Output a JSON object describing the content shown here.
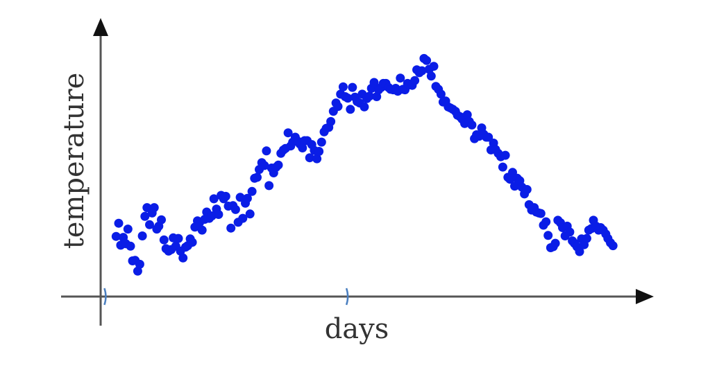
{
  "chart_data": {
    "type": "scatter",
    "xlabel": "days",
    "ylabel": "temperature",
    "xlim": [
      0,
      105
    ],
    "ylim": [
      0,
      55
    ],
    "grid": false,
    "marker_color": "#0a1de6",
    "axis_color": "#555555",
    "x_ticks": [
      1,
      48
    ],
    "series": [
      {
        "points": [
          [
            3.0,
            12.3
          ],
          [
            3.5,
            15.0
          ],
          [
            3.9,
            10.5
          ],
          [
            4.4,
            12.1
          ],
          [
            4.9,
            10.8
          ],
          [
            5.3,
            13.8
          ],
          [
            5.8,
            10.3
          ],
          [
            6.2,
            7.3
          ],
          [
            6.7,
            7.4
          ],
          [
            7.2,
            5.2
          ],
          [
            7.6,
            6.6
          ],
          [
            8.1,
            12.4
          ],
          [
            8.6,
            16.4
          ],
          [
            9.0,
            18.2
          ],
          [
            9.5,
            14.7
          ],
          [
            10.0,
            17.1
          ],
          [
            10.4,
            18.2
          ],
          [
            10.9,
            13.8
          ],
          [
            11.3,
            14.4
          ],
          [
            11.8,
            15.7
          ],
          [
            12.3,
            11.6
          ],
          [
            12.7,
            9.8
          ],
          [
            13.2,
            9.3
          ],
          [
            13.7,
            9.6
          ],
          [
            14.1,
            12.0
          ],
          [
            14.6,
            10.3
          ],
          [
            15.1,
            11.9
          ],
          [
            15.5,
            9.3
          ],
          [
            16.0,
            7.9
          ],
          [
            16.5,
            10.1
          ],
          [
            16.9,
            10.4
          ],
          [
            17.4,
            11.8
          ],
          [
            17.8,
            11.1
          ],
          [
            18.3,
            14.2
          ],
          [
            18.8,
            15.5
          ],
          [
            19.2,
            15.1
          ],
          [
            19.7,
            13.6
          ],
          [
            20.2,
            15.8
          ],
          [
            20.6,
            17.3
          ],
          [
            21.1,
            16.0
          ],
          [
            21.6,
            16.5
          ],
          [
            22.0,
            20.0
          ],
          [
            22.5,
            17.9
          ],
          [
            22.9,
            16.8
          ],
          [
            23.4,
            20.7
          ],
          [
            23.9,
            20.0
          ],
          [
            24.3,
            20.5
          ],
          [
            24.8,
            18.5
          ],
          [
            25.3,
            14.0
          ],
          [
            25.7,
            18.6
          ],
          [
            26.2,
            17.8
          ],
          [
            26.7,
            15.2
          ],
          [
            27.1,
            20.3
          ],
          [
            27.6,
            16.0
          ],
          [
            28.1,
            19.1
          ],
          [
            28.5,
            20.1
          ],
          [
            29.0,
            16.9
          ],
          [
            29.4,
            21.5
          ],
          [
            29.9,
            24.2
          ],
          [
            30.4,
            24.4
          ],
          [
            30.8,
            26.0
          ],
          [
            31.3,
            27.4
          ],
          [
            31.8,
            26.8
          ],
          [
            32.2,
            29.8
          ],
          [
            32.7,
            22.7
          ],
          [
            33.2,
            26.3
          ],
          [
            33.6,
            25.3
          ],
          [
            34.1,
            26.5
          ],
          [
            34.5,
            26.9
          ],
          [
            35.0,
            29.3
          ],
          [
            35.5,
            30.0
          ],
          [
            35.9,
            30.3
          ],
          [
            36.4,
            33.5
          ],
          [
            36.9,
            30.8
          ],
          [
            37.3,
            31.6
          ],
          [
            37.8,
            32.6
          ],
          [
            38.3,
            31.8
          ],
          [
            38.7,
            31.2
          ],
          [
            39.2,
            30.4
          ],
          [
            39.6,
            31.9
          ],
          [
            40.1,
            31.9
          ],
          [
            40.6,
            28.4
          ],
          [
            41.0,
            31.1
          ],
          [
            41.5,
            29.9
          ],
          [
            42.0,
            28.2
          ],
          [
            42.4,
            29.7
          ],
          [
            42.9,
            31.6
          ],
          [
            43.4,
            33.7
          ],
          [
            43.8,
            34.4
          ],
          [
            44.3,
            34.6
          ],
          [
            44.7,
            35.8
          ],
          [
            45.2,
            37.9
          ],
          [
            45.7,
            39.6
          ],
          [
            46.1,
            38.9
          ],
          [
            46.6,
            41.4
          ],
          [
            47.1,
            42.9
          ],
          [
            47.5,
            40.9
          ],
          [
            48.0,
            40.6
          ],
          [
            48.5,
            38.3
          ],
          [
            48.9,
            42.8
          ],
          [
            49.4,
            40.8
          ],
          [
            49.8,
            39.9
          ],
          [
            50.3,
            39.6
          ],
          [
            50.8,
            41.4
          ],
          [
            51.2,
            38.8
          ],
          [
            51.7,
            40.5
          ],
          [
            52.2,
            41.0
          ],
          [
            52.6,
            42.6
          ],
          [
            53.1,
            43.8
          ],
          [
            53.6,
            40.9
          ],
          [
            54.0,
            42.3
          ],
          [
            54.5,
            42.8
          ],
          [
            54.9,
            43.6
          ],
          [
            55.4,
            43.6
          ],
          [
            55.9,
            42.8
          ],
          [
            56.3,
            42.4
          ],
          [
            56.8,
            42.3
          ],
          [
            57.3,
            42.6
          ],
          [
            57.7,
            42.0
          ],
          [
            58.2,
            44.7
          ],
          [
            58.7,
            42.4
          ],
          [
            59.1,
            42.3
          ],
          [
            59.6,
            43.6
          ],
          [
            60.0,
            43.3
          ],
          [
            60.5,
            43.2
          ],
          [
            61.0,
            44.2
          ],
          [
            61.4,
            46.4
          ],
          [
            61.9,
            45.8
          ],
          [
            62.4,
            46.2
          ],
          [
            62.8,
            48.7
          ],
          [
            63.3,
            48.3
          ],
          [
            63.8,
            46.5
          ],
          [
            64.2,
            45.1
          ],
          [
            64.7,
            47.1
          ],
          [
            65.1,
            43.0
          ],
          [
            65.6,
            42.4
          ],
          [
            66.1,
            41.4
          ],
          [
            66.5,
            39.8
          ],
          [
            67.0,
            40.0
          ],
          [
            67.5,
            38.8
          ],
          [
            67.9,
            38.6
          ],
          [
            68.4,
            38.3
          ],
          [
            68.9,
            37.9
          ],
          [
            69.3,
            37.1
          ],
          [
            69.8,
            36.8
          ],
          [
            70.2,
            36.3
          ],
          [
            70.7,
            35.4
          ],
          [
            71.2,
            37.2
          ],
          [
            71.6,
            35.8
          ],
          [
            72.1,
            35.1
          ],
          [
            72.6,
            32.3
          ],
          [
            73.0,
            33.1
          ],
          [
            73.5,
            32.8
          ],
          [
            74.0,
            34.5
          ],
          [
            74.4,
            33.2
          ],
          [
            74.9,
            32.6
          ],
          [
            75.3,
            32.6
          ],
          [
            75.8,
            30.0
          ],
          [
            76.3,
            31.4
          ],
          [
            76.7,
            30.1
          ],
          [
            77.2,
            29.3
          ],
          [
            77.7,
            28.6
          ],
          [
            78.1,
            26.5
          ],
          [
            78.6,
            28.9
          ],
          [
            79.1,
            24.4
          ],
          [
            79.5,
            24.0
          ],
          [
            80.0,
            25.4
          ],
          [
            80.4,
            22.6
          ],
          [
            80.9,
            24.2
          ],
          [
            81.4,
            23.7
          ],
          [
            81.8,
            22.4
          ],
          [
            82.3,
            21.0
          ],
          [
            82.8,
            21.9
          ],
          [
            83.2,
            18.8
          ],
          [
            83.7,
            17.7
          ],
          [
            84.2,
            18.2
          ],
          [
            84.6,
            17.3
          ],
          [
            85.1,
            17.1
          ],
          [
            85.5,
            17.0
          ],
          [
            86.0,
            14.6
          ],
          [
            86.5,
            15.3
          ],
          [
            86.9,
            12.5
          ],
          [
            87.4,
            10.0
          ],
          [
            87.9,
            10.2
          ],
          [
            88.3,
            10.9
          ],
          [
            88.8,
            15.6
          ],
          [
            89.3,
            15.1
          ],
          [
            89.7,
            14.1
          ],
          [
            90.2,
            12.4
          ],
          [
            90.6,
            14.4
          ],
          [
            91.1,
            13.2
          ],
          [
            91.6,
            11.4
          ],
          [
            92.0,
            10.9
          ],
          [
            92.5,
            10.2
          ],
          [
            93.0,
            9.2
          ],
          [
            93.4,
            11.8
          ],
          [
            93.9,
            10.6
          ],
          [
            94.4,
            11.9
          ],
          [
            94.8,
            13.6
          ],
          [
            95.3,
            13.9
          ],
          [
            95.7,
            15.6
          ],
          [
            96.2,
            14.4
          ],
          [
            96.7,
            13.6
          ],
          [
            97.1,
            14.1
          ],
          [
            97.6,
            13.6
          ],
          [
            98.1,
            12.8
          ],
          [
            98.5,
            11.9
          ],
          [
            99.0,
            11.0
          ],
          [
            99.5,
            10.4
          ]
        ]
      }
    ]
  }
}
